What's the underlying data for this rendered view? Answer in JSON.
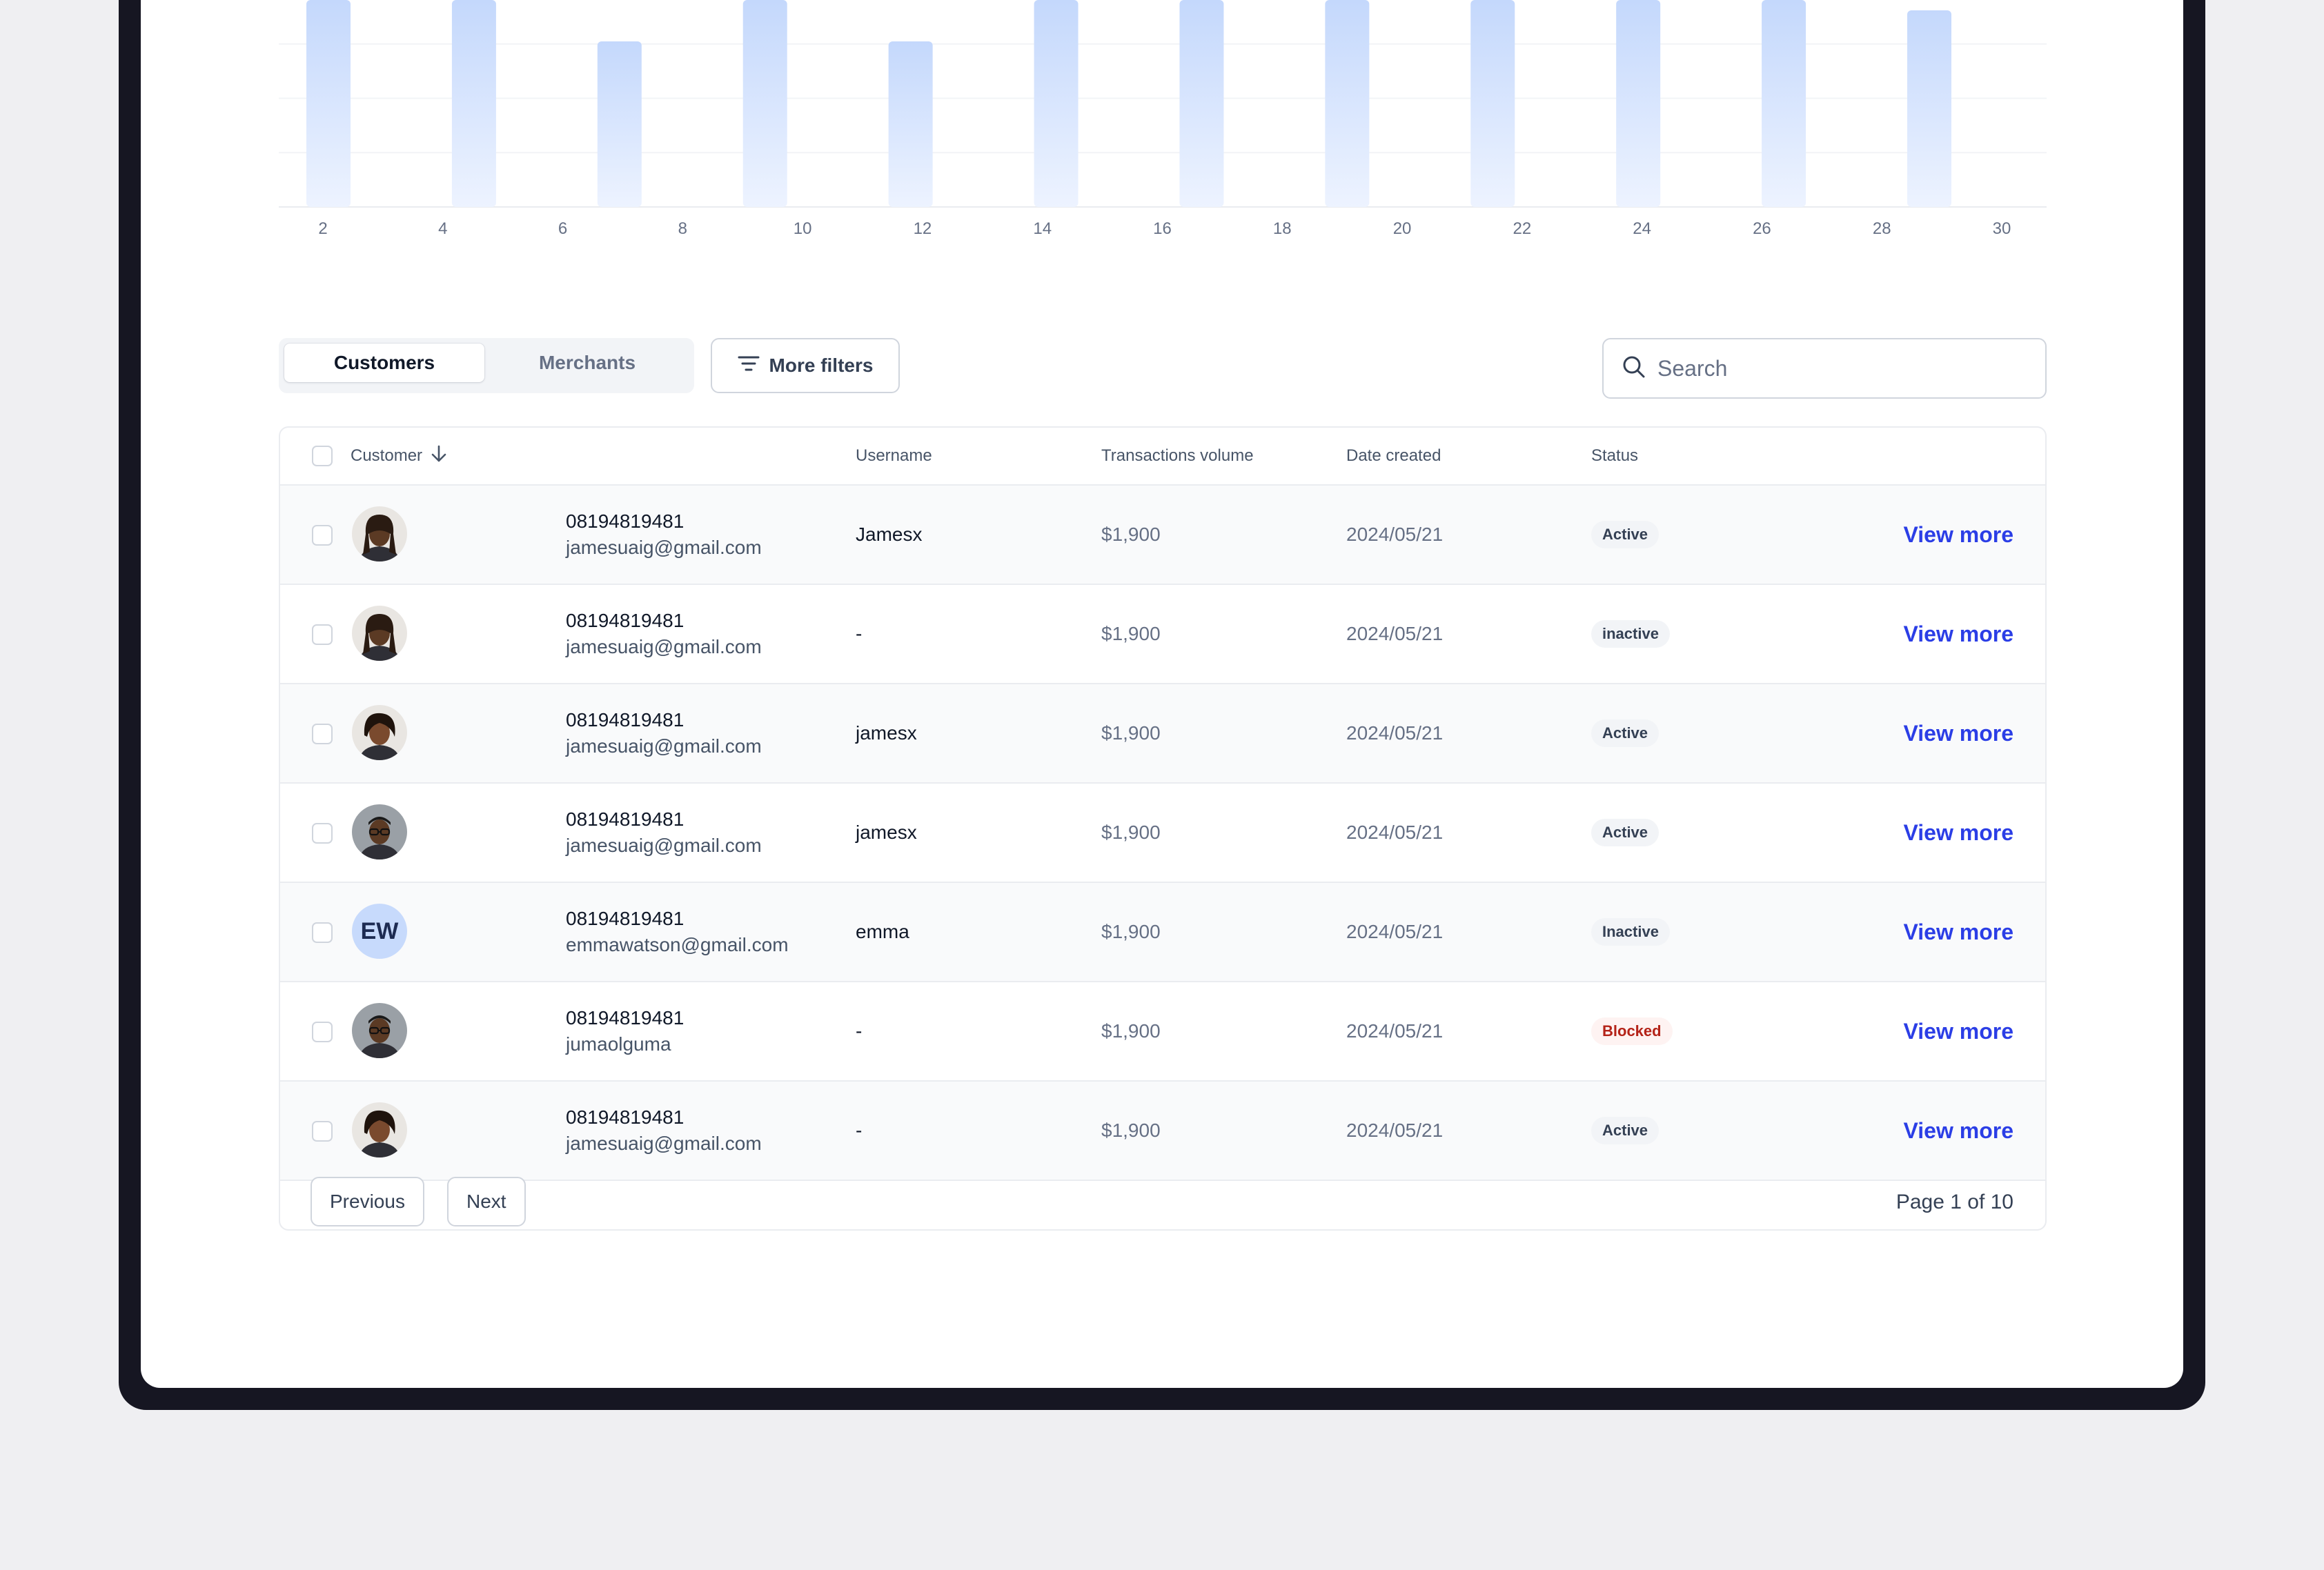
{
  "chart_data": {
    "type": "bar",
    "x_ticks": [
      "2",
      "4",
      "6",
      "8",
      "10",
      "12",
      "14",
      "16",
      "18",
      "20",
      "22",
      "24",
      "26",
      "28",
      "30"
    ],
    "values": [
      100,
      100,
      80,
      100,
      80,
      100,
      100,
      100,
      100,
      100,
      100,
      95
    ],
    "grid": true,
    "bar_color": "#c4d8fc"
  },
  "tabs": {
    "customers": "Customers",
    "merchants": "Merchants"
  },
  "filters": {
    "more_filters_label": "More filters"
  },
  "search": {
    "placeholder": "Search"
  },
  "table": {
    "headers": {
      "customer": "Customer",
      "username": "Username",
      "transactions": "Transactions volume",
      "date": "Date created",
      "status": "Status"
    },
    "rows": [
      {
        "phone": "08194819481",
        "email": "jamesuaig@gmail.com",
        "username": "Jamesx",
        "volume": "$1,900",
        "date": "2024/05/21",
        "status": "Active",
        "action": "View more",
        "avatar": "photo-man-dreadlocks"
      },
      {
        "phone": "08194819481",
        "email": "jamesuaig@gmail.com",
        "username": "-",
        "volume": "$1,900",
        "date": "2024/05/21",
        "status": "inactive",
        "action": "View more",
        "avatar": "photo-man-dreadlocks"
      },
      {
        "phone": "08194819481",
        "email": "jamesuaig@gmail.com",
        "username": "jamesx",
        "volume": "$1,900",
        "date": "2024/05/21",
        "status": "Active",
        "action": "View more",
        "avatar": "photo-woman"
      },
      {
        "phone": "08194819481",
        "email": "jamesuaig@gmail.com",
        "username": "jamesx",
        "volume": "$1,900",
        "date": "2024/05/21",
        "status": "Active",
        "action": "View more",
        "avatar": "photo-man-glasses"
      },
      {
        "phone": "08194819481",
        "email": "emmawatson@gmail.com",
        "username": "emma",
        "volume": "$1,900",
        "date": "2024/05/21",
        "status": "Inactive",
        "action": "View more",
        "avatar_initials": "EW"
      },
      {
        "phone": "08194819481",
        "email": "jumaolguma",
        "username": "-",
        "volume": "$1,900",
        "date": "2024/05/21",
        "status": "Blocked",
        "action": "View more",
        "avatar": "photo-man-glasses"
      },
      {
        "phone": "08194819481",
        "email": "jamesuaig@gmail.com",
        "username": "-",
        "volume": "$1,900",
        "date": "2024/05/21",
        "status": "Active",
        "action": "View more",
        "avatar": "photo-woman"
      }
    ]
  },
  "pagination": {
    "previous": "Previous",
    "next": "Next",
    "page_info": "Page 1 of 10"
  },
  "colors": {
    "accent": "#2b3ee6",
    "blocked_text": "#b42318"
  }
}
